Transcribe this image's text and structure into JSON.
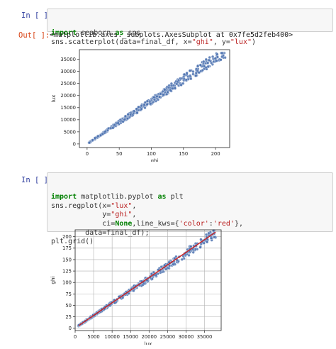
{
  "cells": [
    {
      "prompt_in": "In [ ]:",
      "code_lines": [
        [
          {
            "t": "import",
            "c": "kw"
          },
          {
            "t": " seaborn ",
            "c": ""
          },
          {
            "t": "as",
            "c": "kw"
          },
          {
            "t": " sns",
            "c": ""
          }
        ],
        [
          {
            "t": "sns.scatterplot(data=final_df, x=",
            "c": ""
          },
          {
            "t": "\"ghi\"",
            "c": "str"
          },
          {
            "t": ", y=",
            "c": ""
          },
          {
            "t": "\"lux\"",
            "c": "str"
          },
          {
            "t": ")",
            "c": ""
          }
        ]
      ],
      "prompt_out": "Out[ ]:",
      "output_text": "<matplotlib.axes._subplots.AxesSubplot at 0x7fe5d2feb400>"
    },
    {
      "prompt_in": "In [ ]:",
      "code_lines": [
        [
          {
            "t": "import",
            "c": "kw"
          },
          {
            "t": " matplotlib.pyplot ",
            "c": ""
          },
          {
            "t": "as",
            "c": "kw"
          },
          {
            "t": " plt",
            "c": ""
          }
        ],
        [
          {
            "t": "sns.regplot(x=",
            "c": ""
          },
          {
            "t": "\"lux\"",
            "c": "str"
          },
          {
            "t": ",",
            "c": ""
          }
        ],
        [
          {
            "t": "            y=",
            "c": ""
          },
          {
            "t": "\"ghi\"",
            "c": "str"
          },
          {
            "t": ",",
            "c": ""
          }
        ],
        [
          {
            "t": "            ci=",
            "c": ""
          },
          {
            "t": "None",
            "c": "none"
          },
          {
            "t": ",line_kws={",
            "c": ""
          },
          {
            "t": "'color'",
            "c": "str"
          },
          {
            "t": ":",
            "c": ""
          },
          {
            "t": "'red'",
            "c": "str"
          },
          {
            "t": "},",
            "c": ""
          }
        ],
        [
          {
            "t": "        data=final_df);",
            "c": ""
          }
        ],
        [
          {
            "t": "plt.grid()",
            "c": ""
          }
        ]
      ]
    }
  ],
  "chart_data": [
    {
      "type": "scatter",
      "xlabel": "ghi",
      "ylabel": "lux",
      "xlim": [
        -12,
        222
      ],
      "ylim": [
        -1500,
        39000
      ],
      "xticks": [
        0,
        50,
        100,
        150,
        200
      ],
      "yticks": [
        0,
        5000,
        10000,
        15000,
        20000,
        25000,
        30000,
        35000
      ],
      "grid": false,
      "point_color": "#4c72b0",
      "trend": {
        "slope": 178,
        "intercept": 0
      },
      "point_count": 420
    },
    {
      "type": "scatter",
      "xlabel": "lux",
      "ylabel": "ghi",
      "xlim": [
        0,
        39500
      ],
      "ylim": [
        -5,
        215
      ],
      "xticks": [
        0,
        5000,
        10000,
        15000,
        20000,
        25000,
        30000,
        35000
      ],
      "yticks": [
        0,
        25,
        50,
        75,
        100,
        125,
        150,
        175,
        200
      ],
      "grid": true,
      "point_color": "#4c72b0",
      "regression_line": {
        "color": "#cc2020",
        "from": [
          1000,
          6
        ],
        "to": [
          38000,
          210
        ]
      },
      "point_count": 420
    }
  ]
}
